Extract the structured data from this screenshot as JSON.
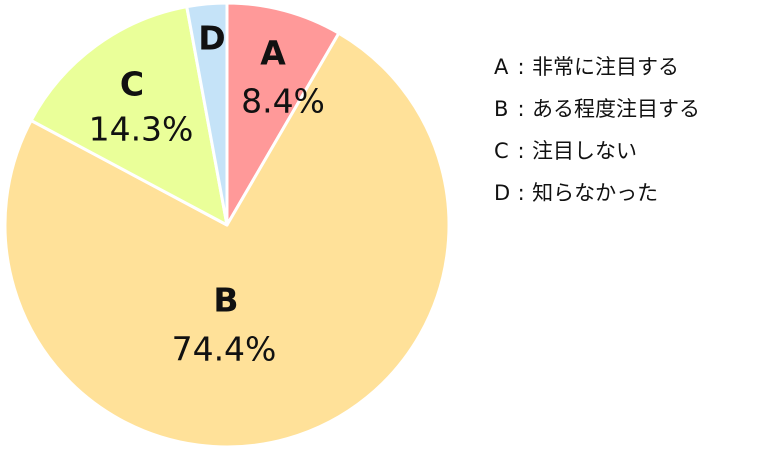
{
  "chart_data": {
    "type": "pie",
    "slices": [
      {
        "label": "A",
        "value": 8.4,
        "value_label": "8.4%",
        "legend": "非常に注目する",
        "color": "#ff9999"
      },
      {
        "label": "B",
        "value": 74.4,
        "value_label": "74.4%",
        "legend": "ある程度注目する",
        "color": "#ffe199"
      },
      {
        "label": "C",
        "value": 14.3,
        "value_label": "14.3%",
        "legend": "注目しない",
        "color": "#eaff99"
      },
      {
        "label": "D",
        "value": 2.9,
        "value_label": "",
        "legend": "知らなかった",
        "color": "#c5e3f8"
      }
    ],
    "start_angle_deg": 0,
    "direction": "clockwise",
    "legend_position": "right",
    "slice_border_color": "#ffffff"
  },
  "legend": {
    "items": [
      {
        "key": "A",
        "separator": ":",
        "text": "非常に注目する"
      },
      {
        "key": "B",
        "separator": ":",
        "text": "ある程度注目する"
      },
      {
        "key": "C",
        "separator": ":",
        "text": "注目しない"
      },
      {
        "key": "D",
        "separator": ":",
        "text": "知らなかった"
      }
    ]
  }
}
